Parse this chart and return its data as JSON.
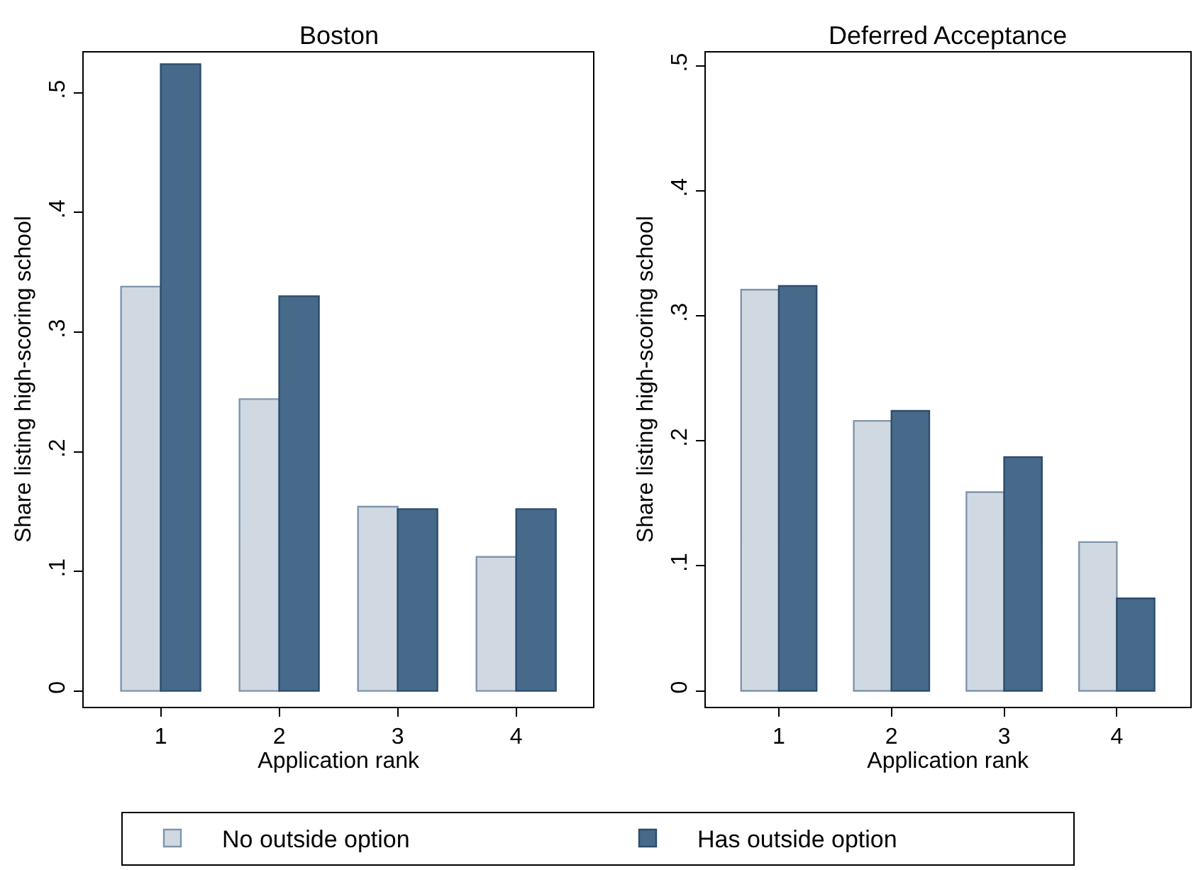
{
  "chart_data": [
    {
      "type": "bar",
      "title": "Boston",
      "xlabel": "Application rank",
      "ylabel": "Share listing high-scoring school",
      "categories": [
        "1",
        "2",
        "3",
        "4"
      ],
      "ylim": [
        -0.013,
        0.534
      ],
      "yticks": [
        {
          "value": 0,
          "label": "0"
        },
        {
          "value": 0.1,
          "label": ".1"
        },
        {
          "value": 0.2,
          "label": ".2"
        },
        {
          "value": 0.3,
          "label": ".3"
        },
        {
          "value": 0.4,
          "label": ".4"
        },
        {
          "value": 0.5,
          "label": ".5"
        }
      ],
      "legend": "bottom",
      "series": [
        {
          "name": "No outside option",
          "color": "#d0d9e2",
          "values": [
            0.338,
            0.244,
            0.154,
            0.112
          ]
        },
        {
          "name": "Has outside option",
          "color": "#476a8b",
          "values": [
            0.524,
            0.33,
            0.152,
            0.152
          ]
        }
      ]
    },
    {
      "type": "bar",
      "title": "Deferred Acceptance",
      "xlabel": "Application rank",
      "ylabel": "Share listing high-scoring school",
      "categories": [
        "1",
        "2",
        "3",
        "4"
      ],
      "ylim": [
        -0.0125,
        0.511
      ],
      "yticks": [
        {
          "value": 0,
          "label": "0"
        },
        {
          "value": 0.1,
          "label": ".1"
        },
        {
          "value": 0.2,
          "label": ".2"
        },
        {
          "value": 0.3,
          "label": ".3"
        },
        {
          "value": 0.4,
          "label": ".4"
        },
        {
          "value": 0.5,
          "label": ".5"
        }
      ],
      "series": [
        {
          "color": "#d0d9e2",
          "values": [
            0.321,
            0.216,
            0.159,
            0.119
          ]
        },
        {
          "color": "#476a8b",
          "values": [
            0.324,
            0.224,
            0.187,
            0.074
          ]
        }
      ]
    }
  ]
}
